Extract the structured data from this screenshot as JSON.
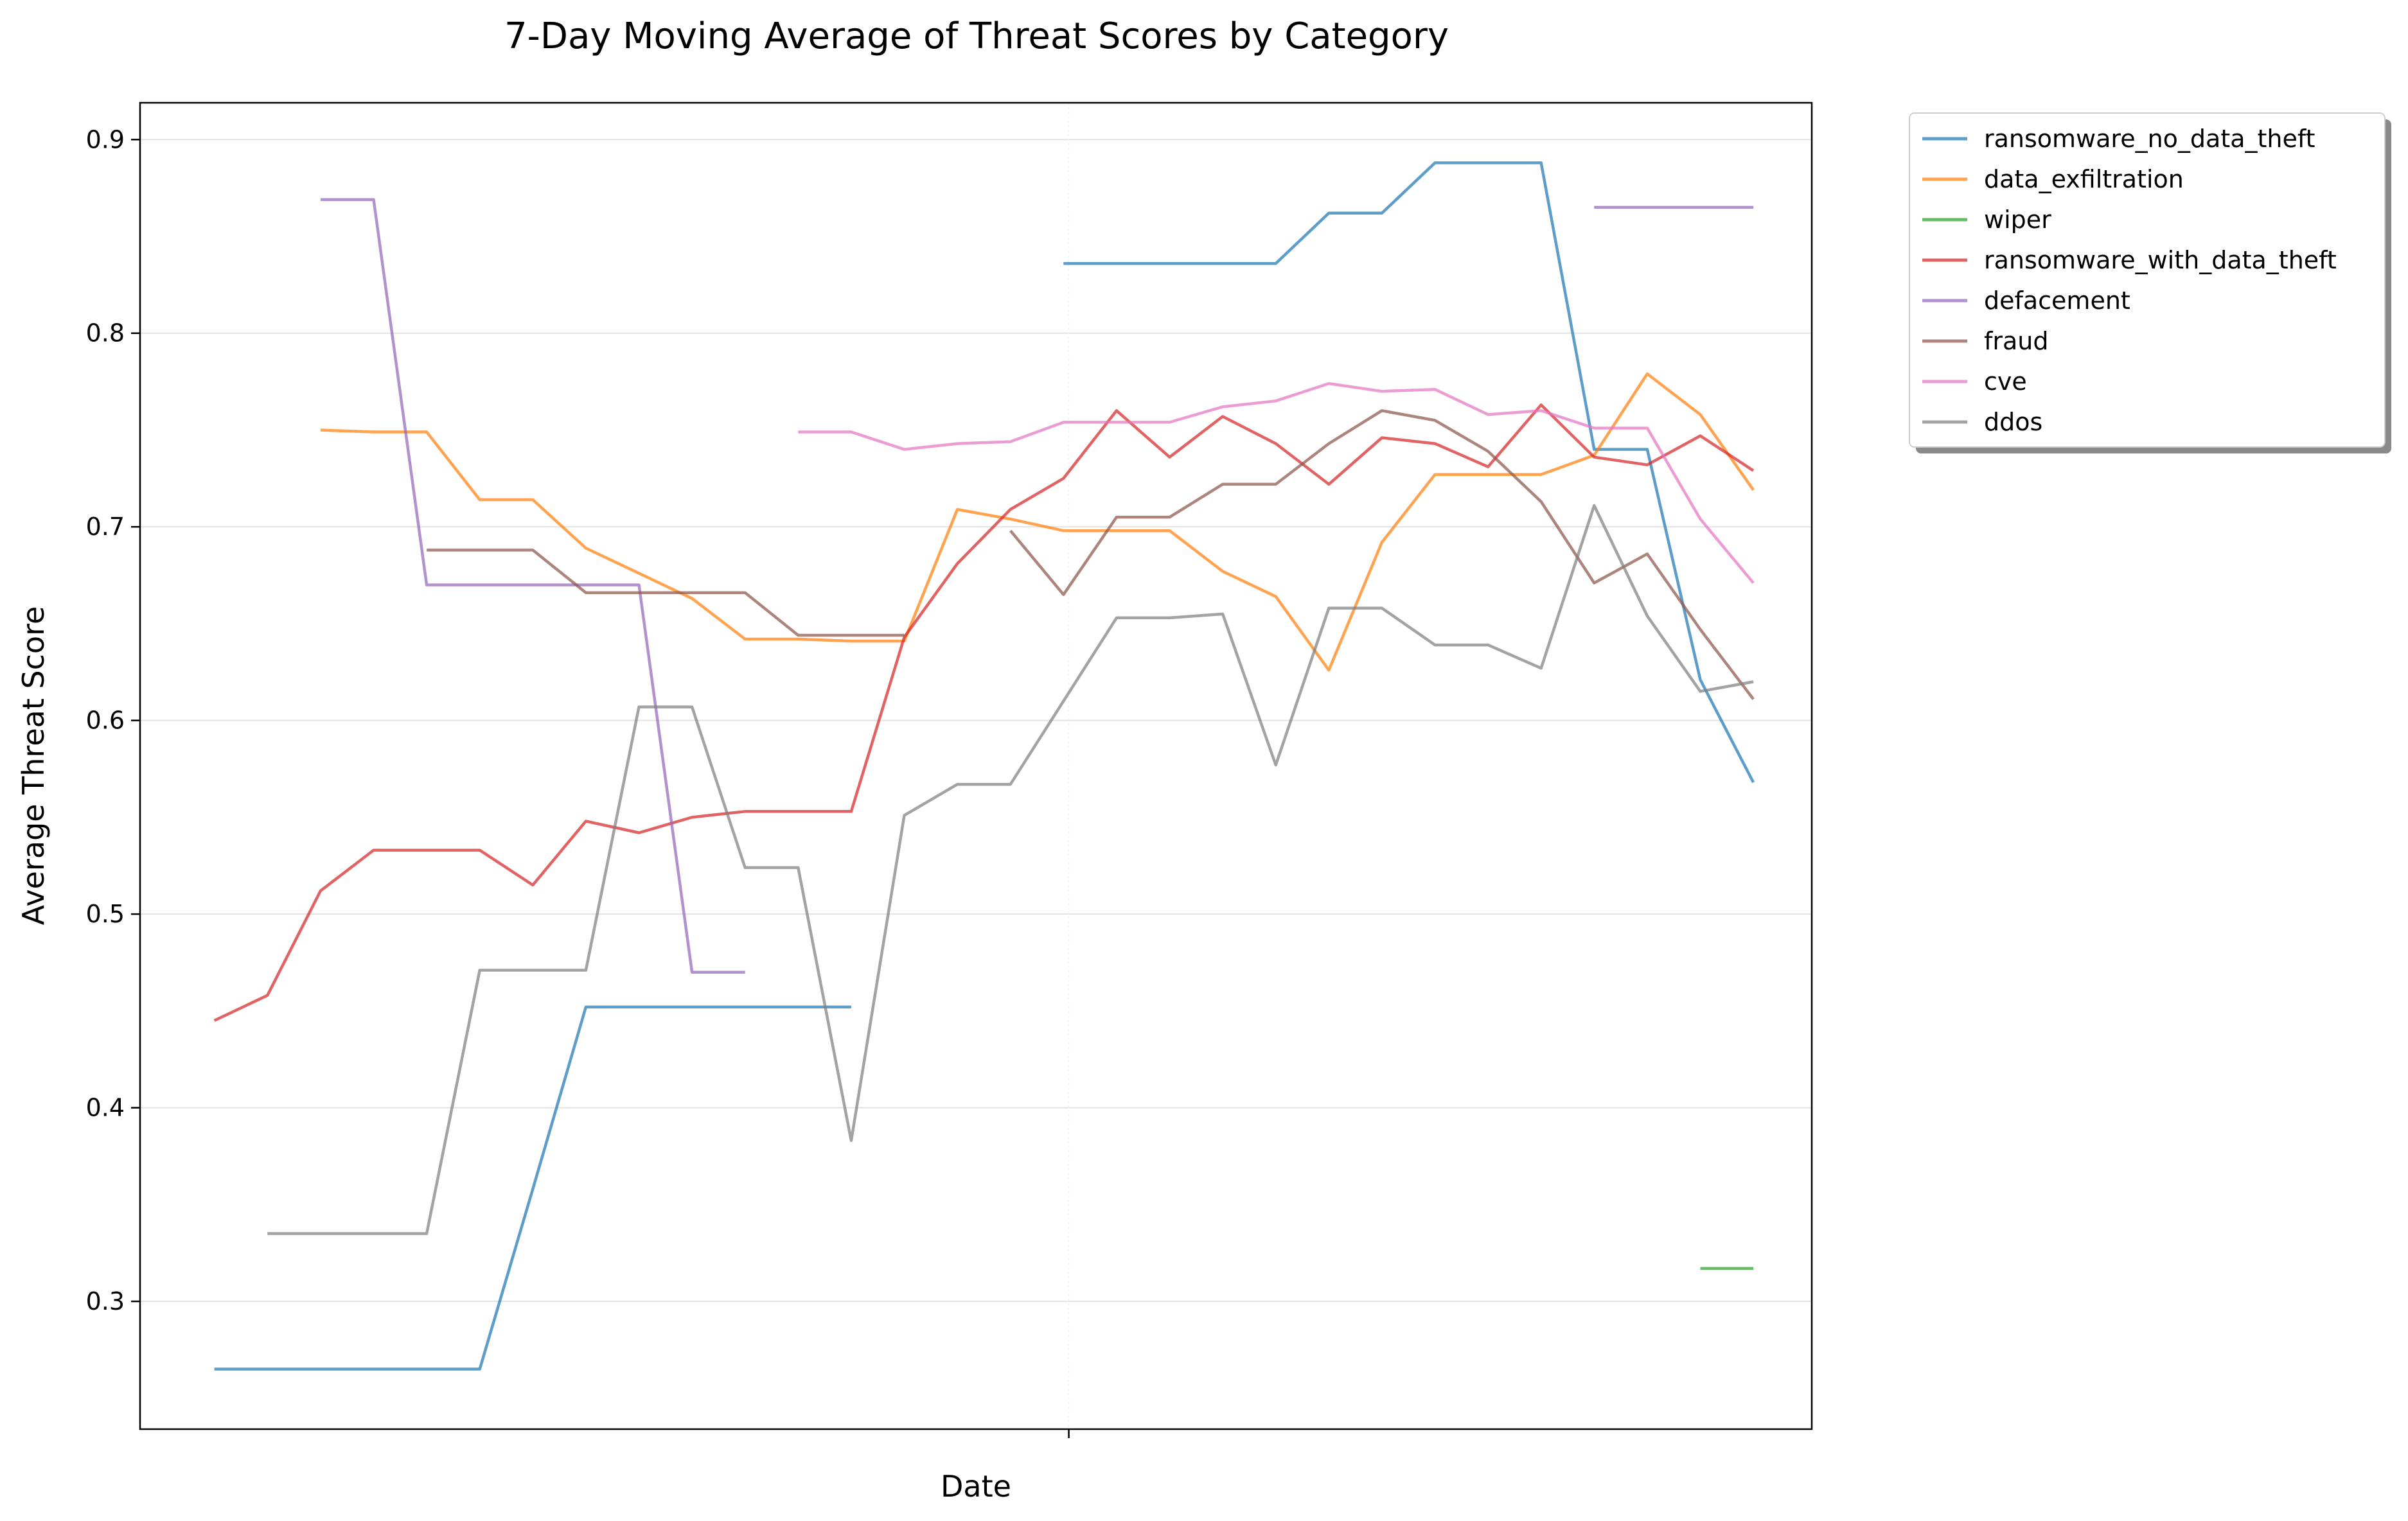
{
  "chart_data": {
    "type": "line",
    "title": "7-Day Moving Average of Threat Scores by Category",
    "xlabel": "Date",
    "ylabel": "Average Threat Score",
    "ylim": [
      0.234,
      0.919
    ],
    "xlim": [
      -1.4,
      30.1
    ],
    "yticks": [
      0.3,
      0.4,
      0.5,
      0.6,
      0.7,
      0.8,
      0.9
    ],
    "ytick_labels": [
      "0.3",
      "0.4",
      "0.5",
      "0.6",
      "0.7",
      "0.8",
      "0.9"
    ],
    "grid": true,
    "legend_position": "outside-top-right",
    "x": [
      0,
      1,
      2,
      3,
      4,
      5,
      6,
      7,
      8,
      9,
      10,
      11,
      12,
      13,
      14,
      15,
      16,
      17,
      18,
      19,
      20,
      21,
      22,
      23,
      24,
      25,
      26,
      27,
      28,
      29
    ],
    "series": [
      {
        "name": "ransomware_no_data_theft",
        "color": "#1f77b4",
        "values": [
          0.265,
          0.265,
          0.265,
          0.265,
          0.265,
          0.265,
          0.358,
          0.452,
          0.452,
          0.452,
          0.452,
          0.452,
          0.452,
          null,
          null,
          null,
          0.836,
          0.836,
          0.836,
          0.836,
          0.836,
          0.862,
          0.862,
          0.888,
          0.888,
          0.888,
          0.74,
          0.74,
          0.621,
          0.568
        ]
      },
      {
        "name": "data_exfiltration",
        "color": "#ff7f0e",
        "values": [
          null,
          null,
          0.75,
          0.749,
          0.749,
          0.714,
          0.714,
          0.689,
          0.676,
          0.663,
          0.642,
          0.642,
          0.641,
          0.641,
          0.709,
          0.704,
          0.698,
          0.698,
          0.698,
          0.677,
          0.664,
          0.626,
          0.692,
          0.727,
          0.727,
          0.727,
          0.737,
          0.779,
          0.758,
          0.719
        ]
      },
      {
        "name": "wiper",
        "color": "#2ca02c",
        "values": [
          null,
          null,
          null,
          null,
          null,
          null,
          null,
          null,
          null,
          null,
          null,
          null,
          null,
          null,
          null,
          null,
          null,
          null,
          null,
          null,
          null,
          null,
          null,
          null,
          null,
          null,
          null,
          null,
          0.317,
          0.317
        ]
      },
      {
        "name": "ransomware_with_data_theft",
        "color": "#d62728",
        "values": [
          0.445,
          0.458,
          0.512,
          0.533,
          0.533,
          0.533,
          0.515,
          0.548,
          0.542,
          0.55,
          0.553,
          0.553,
          0.553,
          0.643,
          0.681,
          0.709,
          0.725,
          0.76,
          0.736,
          0.757,
          0.743,
          0.722,
          0.746,
          0.743,
          0.731,
          0.763,
          0.736,
          0.732,
          0.747,
          0.729
        ]
      },
      {
        "name": "defacement",
        "color": "#9467bd",
        "values": [
          null,
          null,
          0.869,
          0.869,
          0.67,
          0.67,
          0.67,
          0.67,
          0.67,
          0.47,
          0.47,
          null,
          null,
          null,
          null,
          null,
          null,
          null,
          null,
          null,
          null,
          null,
          null,
          null,
          null,
          null,
          0.865,
          0.865,
          0.865,
          0.865
        ]
      },
      {
        "name": "fraud",
        "color": "#8c564b",
        "values": [
          null,
          null,
          null,
          null,
          0.688,
          0.688,
          0.688,
          0.666,
          0.666,
          0.666,
          0.666,
          0.644,
          0.644,
          0.644,
          null,
          0.698,
          0.665,
          0.705,
          0.705,
          0.722,
          0.722,
          0.743,
          0.76,
          0.755,
          0.739,
          0.713,
          0.671,
          0.686,
          0.647,
          0.611
        ]
      },
      {
        "name": "cve",
        "color": "#e377c2",
        "values": [
          null,
          null,
          null,
          null,
          null,
          null,
          null,
          null,
          null,
          null,
          null,
          0.749,
          0.749,
          0.74,
          0.743,
          0.744,
          0.754,
          0.754,
          0.754,
          0.762,
          0.765,
          0.774,
          0.77,
          0.771,
          0.758,
          0.76,
          0.751,
          0.751,
          0.704,
          0.671
        ]
      },
      {
        "name": "ddos",
        "color": "#7f7f7f",
        "values": [
          null,
          0.335,
          0.335,
          0.335,
          0.335,
          0.471,
          0.471,
          0.471,
          0.607,
          0.607,
          0.524,
          0.524,
          0.383,
          0.551,
          0.567,
          0.567,
          0.61,
          0.653,
          0.653,
          0.655,
          0.577,
          0.658,
          0.658,
          0.639,
          0.639,
          0.627,
          0.711,
          0.654,
          0.615,
          0.62
        ]
      }
    ]
  }
}
